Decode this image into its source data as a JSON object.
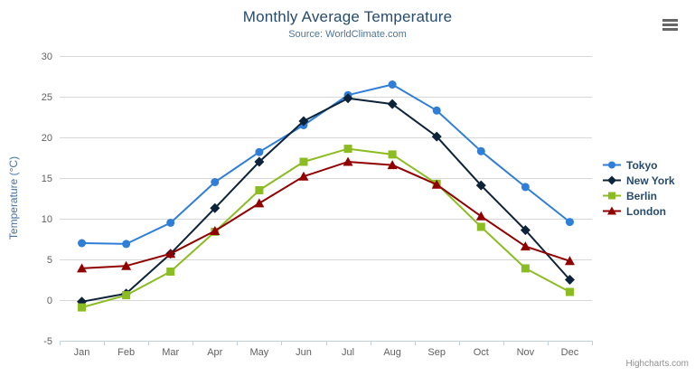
{
  "header": {
    "title": "Monthly Average Temperature",
    "subtitle": "Source: WorldClimate.com"
  },
  "credits": "Highcharts.com",
  "icons": {
    "context_menu": "hamburger-icon"
  },
  "chart_data": {
    "type": "line",
    "title": "Monthly Average Temperature",
    "subtitle": "Source: WorldClimate.com",
    "categories": [
      "Jan",
      "Feb",
      "Mar",
      "Apr",
      "May",
      "Jun",
      "Jul",
      "Aug",
      "Sep",
      "Oct",
      "Nov",
      "Dec"
    ],
    "xlabel": "",
    "ylabel": "Temperature (°C)",
    "ylim": [
      -5,
      30
    ],
    "ytick_step": 5,
    "yticks": [
      -5,
      0,
      5,
      10,
      15,
      20,
      25,
      30
    ],
    "grid": true,
    "legend_position": "right",
    "series": [
      {
        "name": "Tokyo",
        "color": "#2f7ed8",
        "marker": "circle",
        "values": [
          7.0,
          6.9,
          9.5,
          14.5,
          18.2,
          21.5,
          25.2,
          26.5,
          23.3,
          18.3,
          13.9,
          9.6
        ]
      },
      {
        "name": "New York",
        "color": "#0d233a",
        "marker": "diamond",
        "values": [
          -0.2,
          0.8,
          5.7,
          11.3,
          17.0,
          22.0,
          24.8,
          24.1,
          20.1,
          14.1,
          8.6,
          2.5
        ]
      },
      {
        "name": "Berlin",
        "color": "#8bbc21",
        "marker": "square",
        "values": [
          -0.9,
          0.6,
          3.5,
          8.4,
          13.5,
          17.0,
          18.6,
          17.9,
          14.3,
          9.0,
          3.9,
          1.0
        ]
      },
      {
        "name": "London",
        "color": "#910000",
        "marker": "triangle",
        "values": [
          3.9,
          4.2,
          5.7,
          8.5,
          11.9,
          15.2,
          17.0,
          16.6,
          14.2,
          10.3,
          6.6,
          4.8
        ]
      }
    ],
    "axis_colors": {
      "grid_line": "#d8d8d8",
      "axis_line": "#c0d0e0",
      "tick_label": "#606060"
    }
  }
}
